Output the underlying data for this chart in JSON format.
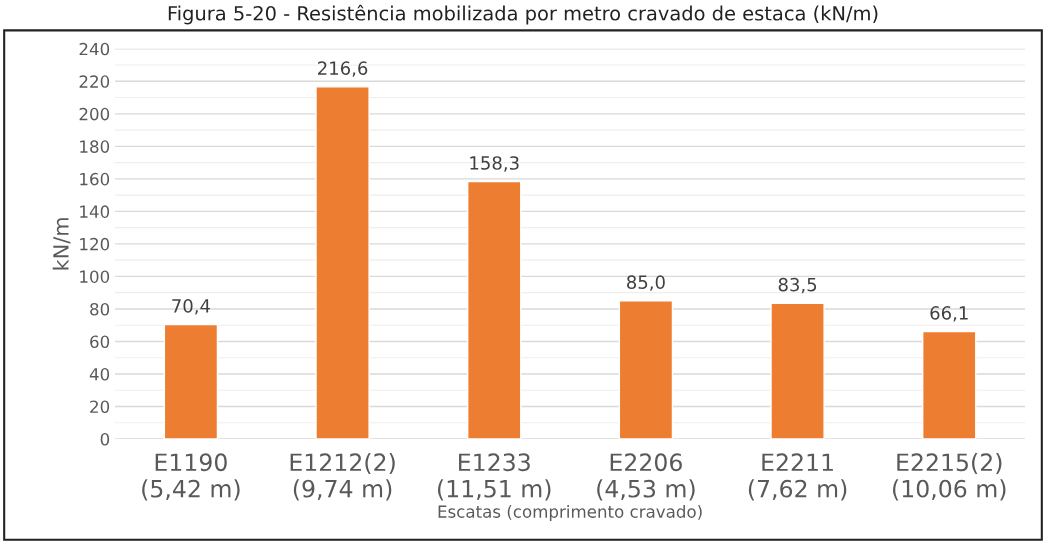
{
  "chart_data": {
    "type": "bar",
    "title": "Figura 5-20 - Resistência mobilizada por metro cravado de estaca (kN/m)",
    "categories": [
      "E1190\n(5,42 m)",
      "E1212(2)\n(9,74 m)",
      "E1233\n(11,51 m)",
      "E2206\n(4,53 m)",
      "E2211\n(7,62 m)",
      "E2215(2)\n(10,06 m)"
    ],
    "values": [
      70.4,
      216.6,
      158.3,
      85.0,
      83.5,
      66.1
    ],
    "value_labels": [
      "70,4",
      "216,6",
      "158,3",
      "85,0",
      "83,5",
      "66,1"
    ],
    "color": "#ed7d31",
    "xlabel": "Escatas (comprimento cravado)",
    "ylabel": "kN/m",
    "ylim": [
      0,
      240
    ],
    "yticks": [
      0,
      20,
      40,
      60,
      80,
      100,
      120,
      140,
      160,
      180,
      200,
      220,
      240
    ],
    "grid": "y",
    "legend": false
  }
}
